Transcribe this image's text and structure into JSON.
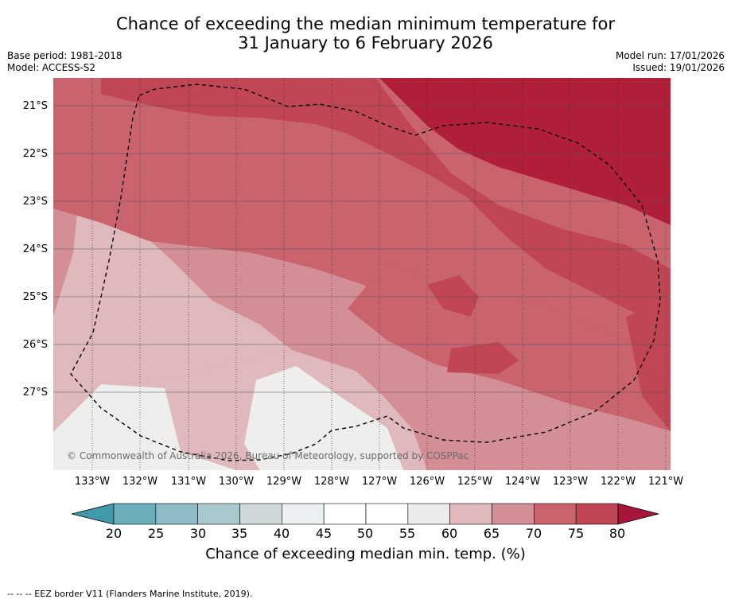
{
  "header": {
    "title_line1": "Chance of exceeding the median minimum temperature for",
    "title_line2": "31 January to 6 February 2026",
    "base_period": "Base period: 1981-2018",
    "model": "Model: ACCESS-S2",
    "model_run": "Model run: 17/01/2026",
    "issued": "Issued: 19/01/2026"
  },
  "map": {
    "lat_labels": [
      "21°S",
      "22°S",
      "23°S",
      "24°S",
      "25°S",
      "26°S",
      "27°S"
    ],
    "lon_labels": [
      "133°W",
      "132°W",
      "131°W",
      "130°W",
      "129°W",
      "128°W",
      "127°W",
      "126°W",
      "125°W",
      "124°W",
      "123°W",
      "122°W",
      "121°W"
    ],
    "copyright": "© Commonwealth of Australia 2026, Bureau of Meteorology, supported by COSPPac",
    "colors": {
      "c80plus": "#b01e3a",
      "c75_80": "#c04555",
      "c70_75": "#c9636e",
      "c65_70": "#d48e95",
      "c60_65": "#e0b9bd",
      "c55_60": "#eeeeec",
      "c50_55": "#f8f8f8"
    }
  },
  "colorbar": {
    "ticks": [
      "20",
      "25",
      "30",
      "35",
      "40",
      "45",
      "50",
      "55",
      "60",
      "65",
      "70",
      "75",
      "80"
    ],
    "colors": [
      "#6aaebb",
      "#8dbcc6",
      "#aac9ce",
      "#cfd9da",
      "#ebf1f3",
      "#ffffff",
      "#ffffff",
      "#ececeb",
      "#e0b9bd",
      "#d48e95",
      "#c9636e",
      "#c04555"
    ],
    "low_color": "#3f9aa9",
    "high_color": "#a8153a",
    "label": "Chance of exceeding median min. temp. (%)"
  },
  "footer": {
    "legend": "--  --  -- EEZ border V11 (Flanders Marine Institute, 2019)."
  }
}
